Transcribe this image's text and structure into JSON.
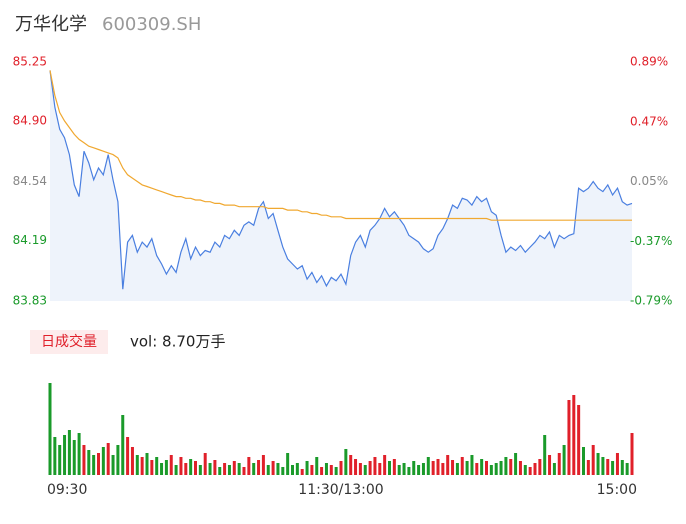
{
  "header": {
    "name": "万华化学",
    "code": "600309.SH"
  },
  "chart_data": [
    {
      "type": "line",
      "ylim": [
        83.83,
        85.25
      ],
      "yticks": [
        85.25,
        {
          "value": 84.9,
          "label": "84.90"
        },
        84.54,
        84.19,
        83.83
      ],
      "ytick_colors": [
        "#e0202a",
        "#e0202a",
        "#888888",
        "#1a9a2a",
        "#1a9a2a"
      ],
      "y2lim": [
        -0.79,
        0.89
      ],
      "y2ticks": [
        {
          "value": 0.89,
          "label": "0.89%"
        },
        {
          "value": 0.47,
          "label": "0.47%"
        },
        {
          "value": 0.05,
          "label": "0.05%"
        },
        {
          "value": -0.37,
          "label": "-0.37%"
        },
        {
          "value": -0.79,
          "label": "-0.79%"
        }
      ],
      "y2tick_colors": [
        "#e0202a",
        "#e0202a",
        "#888888",
        "#1a9a2a",
        "#1a9a2a"
      ],
      "area_color": "#eef3fb",
      "series": [
        {
          "color": "#4a7fe0",
          "values": [
            85.2,
            84.98,
            84.85,
            84.8,
            84.7,
            84.52,
            84.45,
            84.72,
            84.65,
            84.55,
            84.62,
            84.58,
            84.7,
            84.55,
            84.42,
            83.9,
            84.18,
            84.22,
            84.12,
            84.18,
            84.15,
            84.2,
            84.1,
            84.05,
            83.99,
            84.04,
            84.0,
            84.12,
            84.2,
            84.08,
            84.15,
            84.1,
            84.13,
            84.12,
            84.18,
            84.15,
            84.22,
            84.2,
            84.25,
            84.22,
            84.28,
            84.3,
            84.28,
            84.38,
            84.42,
            84.32,
            84.35,
            84.25,
            84.15,
            84.08,
            84.05,
            84.02,
            84.04,
            83.96,
            84.0,
            83.94,
            83.98,
            83.92,
            83.97,
            83.95,
            83.99,
            83.93,
            84.1,
            84.18,
            84.22,
            84.15,
            84.25,
            84.28,
            84.32,
            84.38,
            84.33,
            84.36,
            84.32,
            84.28,
            84.22,
            84.2,
            84.18,
            84.14,
            84.12,
            84.14,
            84.22,
            84.26,
            84.32,
            84.4,
            84.38,
            84.44,
            84.43,
            84.4,
            84.45,
            84.42,
            84.44,
            84.36,
            84.34,
            84.22,
            84.12,
            84.15,
            84.13,
            84.16,
            84.12,
            84.15,
            84.18,
            84.22,
            84.2,
            84.24,
            84.15,
            84.22,
            84.2,
            84.22,
            84.23,
            84.5,
            84.48,
            84.5,
            84.54,
            84.5,
            84.48,
            84.52,
            84.46,
            84.5,
            84.42,
            84.4,
            84.41
          ]
        },
        {
          "color": "#f0a830",
          "values": [
            85.2,
            85.05,
            84.95,
            84.9,
            84.86,
            84.82,
            84.79,
            84.77,
            84.75,
            84.74,
            84.73,
            84.72,
            84.71,
            84.7,
            84.68,
            84.62,
            84.58,
            84.56,
            84.54,
            84.52,
            84.51,
            84.5,
            84.49,
            84.48,
            84.47,
            84.46,
            84.45,
            84.45,
            84.44,
            84.44,
            84.43,
            84.43,
            84.42,
            84.42,
            84.41,
            84.41,
            84.4,
            84.4,
            84.4,
            84.39,
            84.39,
            84.39,
            84.39,
            84.39,
            84.39,
            84.38,
            84.38,
            84.38,
            84.38,
            84.37,
            84.37,
            84.37,
            84.36,
            84.36,
            84.35,
            84.35,
            84.34,
            84.34,
            84.33,
            84.33,
            84.33,
            84.32,
            84.32,
            84.32,
            84.32,
            84.32,
            84.32,
            84.32,
            84.32,
            84.32,
            84.32,
            84.32,
            84.32,
            84.32,
            84.32,
            84.32,
            84.32,
            84.32,
            84.32,
            84.32,
            84.32,
            84.32,
            84.32,
            84.32,
            84.32,
            84.32,
            84.32,
            84.32,
            84.32,
            84.32,
            84.32,
            84.31,
            84.31,
            84.31,
            84.31,
            84.31,
            84.31,
            84.31,
            84.31,
            84.31,
            84.31,
            84.31,
            84.31,
            84.31,
            84.31,
            84.31,
            84.31,
            84.31,
            84.31,
            84.31,
            84.31,
            84.31,
            84.31,
            84.31,
            84.31,
            84.31,
            84.31,
            84.31,
            84.31,
            84.31,
            84.31
          ]
        }
      ]
    },
    {
      "type": "bar",
      "title": "日成交量",
      "subtitle": "vol: 8.70万手",
      "up_color": "#e0202a",
      "down_color": "#1a9a2a",
      "categories": [
        "09:30",
        null,
        null,
        null,
        null,
        null,
        null,
        null,
        null,
        null,
        null,
        null,
        null,
        null,
        null,
        null,
        null,
        null,
        null,
        null,
        null,
        null,
        null,
        null,
        null,
        null,
        null,
        null,
        null,
        null,
        null,
        null,
        null,
        null,
        null,
        null,
        null,
        null,
        null,
        null,
        null,
        null,
        null,
        null,
        null,
        null,
        null,
        null,
        null,
        null,
        null,
        null,
        null,
        null,
        null,
        null,
        null,
        null,
        null,
        null,
        "11:30/13:00",
        null,
        null,
        null,
        null,
        null,
        null,
        null,
        null,
        null,
        null,
        null,
        null,
        null,
        null,
        null,
        null,
        null,
        null,
        null,
        null,
        null,
        null,
        null,
        null,
        null,
        null,
        null,
        null,
        null,
        null,
        null,
        null,
        null,
        null,
        null,
        null,
        null,
        null,
        null,
        null,
        null,
        null,
        null,
        null,
        null,
        null,
        null,
        null,
        null,
        null,
        null,
        null,
        null,
        null,
        null,
        null,
        null,
        null,
        null,
        "15:00"
      ],
      "values": [
        3680,
        1520,
        1200,
        1600,
        1800,
        1400,
        1680,
        1200,
        1000,
        800,
        880,
        1120,
        1280,
        800,
        1200,
        2400,
        1520,
        1120,
        800,
        720,
        880,
        600,
        720,
        480,
        600,
        800,
        400,
        720,
        480,
        640,
        560,
        400,
        880,
        480,
        600,
        320,
        480,
        400,
        560,
        480,
        320,
        720,
        480,
        600,
        800,
        400,
        560,
        480,
        320,
        880,
        400,
        480,
        240,
        560,
        400,
        720,
        320,
        480,
        400,
        320,
        560,
        1040,
        800,
        640,
        480,
        400,
        560,
        720,
        480,
        800,
        560,
        640,
        400,
        480,
        320,
        560,
        400,
        480,
        720,
        560,
        640,
        480,
        800,
        600,
        480,
        720,
        560,
        800,
        480,
        640,
        560,
        400,
        480,
        560,
        720,
        640,
        880,
        560,
        400,
        320,
        480,
        640,
        1600,
        800,
        480,
        880,
        1200,
        3000,
        3200,
        2800,
        1120,
        600,
        1200,
        880,
        720,
        640,
        560,
        880,
        600,
        480,
        1680
      ]
    }
  ]
}
